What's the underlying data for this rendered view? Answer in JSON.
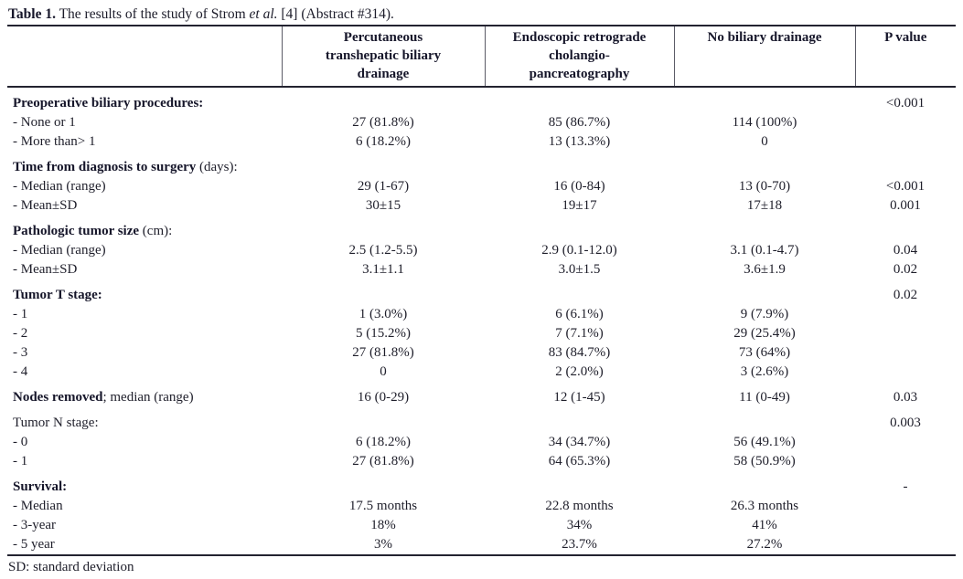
{
  "caption": {
    "label": "Table 1.",
    "text1": " The results of the study of Strom ",
    "etal": "et al.",
    "text2": " [4] (Abstract #314)."
  },
  "table": {
    "columns": {
      "col1": "Percutaneous\ntranshepatic biliary\ndrainage",
      "col2": "Endoscopic retrograde\ncholangio-\npancreatography",
      "col3": "No biliary drainage",
      "p": "P value"
    },
    "rows": [
      {
        "gap": true,
        "bold": "Preoperative biliary procedures:",
        "rest": "",
        "c1": "",
        "c2": "",
        "c3": "",
        "p": "<0.001"
      },
      {
        "rest": "- None or 1",
        "c1": "27 (81.8%)",
        "c2": "85 (86.7%)",
        "c3": "114 (100%)",
        "p": ""
      },
      {
        "rest": "- More than> 1",
        "c1": "6 (18.2%)",
        "c2": "13 (13.3%)",
        "c3": "0",
        "p": ""
      },
      {
        "gap": true,
        "bold": "Time from diagnosis to surgery",
        "rest": " (days):",
        "c1": "",
        "c2": "",
        "c3": "",
        "p": ""
      },
      {
        "rest": "- Median (range)",
        "c1": "29 (1-67)",
        "c2": "16 (0-84)",
        "c3": "13 (0-70)",
        "p": "<0.001"
      },
      {
        "rest": "- Mean±SD",
        "c1": "30±15",
        "c2": "19±17",
        "c3": "17±18",
        "p": "0.001"
      },
      {
        "gap": true,
        "bold": "Pathologic tumor size",
        "rest": " (cm):",
        "c1": "",
        "c2": "",
        "c3": "",
        "p": ""
      },
      {
        "rest": "- Median (range)",
        "c1": "2.5 (1.2-5.5)",
        "c2": "2.9 (0.1-12.0)",
        "c3": "3.1 (0.1-4.7)",
        "p": "0.04"
      },
      {
        "rest": "- Mean±SD",
        "c1": "3.1±1.1",
        "c2": "3.0±1.5",
        "c3": "3.6±1.9",
        "p": "0.02"
      },
      {
        "gap": true,
        "bold": "Tumor T stage:",
        "rest": "",
        "c1": "",
        "c2": "",
        "c3": "",
        "p": "0.02"
      },
      {
        "rest": "- 1",
        "c1": "1 (3.0%)",
        "c2": "6 (6.1%)",
        "c3": "9 (7.9%)",
        "p": ""
      },
      {
        "rest": "- 2",
        "c1": "5 (15.2%)",
        "c2": "7 (7.1%)",
        "c3": "29 (25.4%)",
        "p": ""
      },
      {
        "rest": "- 3",
        "c1": "27 (81.8%)",
        "c2": "83 (84.7%)",
        "c3": "73 (64%)",
        "p": ""
      },
      {
        "rest": "- 4",
        "c1": "0",
        "c2": "2 (2.0%)",
        "c3": "3 (2.6%)",
        "p": ""
      },
      {
        "gap": true,
        "bold": "Nodes removed",
        "rest": "; median (range)",
        "c1": "16 (0-29)",
        "c2": "12 (1-45)",
        "c3": "11 (0-49)",
        "p": "0.03"
      },
      {
        "gap": true,
        "bold": "",
        "rest": "Tumor N stage:",
        "c1": "",
        "c2": "",
        "c3": "",
        "p": "0.003"
      },
      {
        "rest": "- 0",
        "c1": "6 (18.2%)",
        "c2": "34 (34.7%)",
        "c3": "56 (49.1%)",
        "p": ""
      },
      {
        "rest": "- 1",
        "c1": "27 (81.8%)",
        "c2": "64 (65.3%)",
        "c3": "58 (50.9%)",
        "p": ""
      },
      {
        "gap": true,
        "bold": "Survival:",
        "rest": "",
        "c1": "",
        "c2": "",
        "c3": "",
        "p": "-"
      },
      {
        "rest": "- Median",
        "c1": "17.5 months",
        "c2": "22.8 months",
        "c3": "26.3 months",
        "p": ""
      },
      {
        "rest": "- 3-year",
        "c1": "18%",
        "c2": "34%",
        "c3": "41%",
        "p": ""
      },
      {
        "rest": "- 5 year",
        "c1": "3%",
        "c2": "23.7%",
        "c3": "27.2%",
        "p": ""
      }
    ]
  },
  "footnote": "SD: standard deviation"
}
